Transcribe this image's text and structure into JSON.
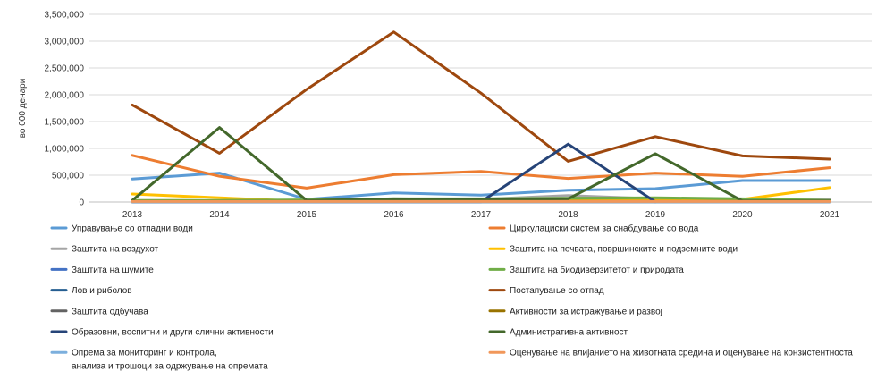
{
  "chart_data": {
    "type": "line",
    "ylabel": "во 000 денари",
    "xlabel": "",
    "title": "",
    "categories": [
      "2013",
      "2014",
      "2015",
      "2016",
      "2017",
      "2018",
      "2019",
      "2020",
      "2021"
    ],
    "ylim": [
      0,
      3500000
    ],
    "yticks": [
      0,
      500000,
      1000000,
      1500000,
      2000000,
      2500000,
      3000000,
      3500000
    ],
    "ytick_labels": [
      "0",
      "500,000",
      "1,000,000",
      "1,500,000",
      "2,000,000",
      "2,500,000",
      "3,000,000",
      "3,500,000"
    ],
    "grid": "horizontal",
    "legend_position": "bottom",
    "series": [
      {
        "name": "Управување со отпадни води",
        "color": "#5b9bd5",
        "values": [
          430000,
          540000,
          50000,
          170000,
          130000,
          220000,
          250000,
          400000,
          400000
        ]
      },
      {
        "name": "Циркулациски систем за снабдување со вода",
        "color": "#ed7d31",
        "values": [
          870000,
          480000,
          260000,
          510000,
          570000,
          440000,
          540000,
          480000,
          640000
        ]
      },
      {
        "name": "Заштита на воздухот",
        "color": "#a5a5a5",
        "values": [
          20000,
          20000,
          10000,
          50000,
          50000,
          120000,
          60000,
          50000,
          50000
        ]
      },
      {
        "name": "Заштита на почвата, површинските и подземните води",
        "color": "#ffc000",
        "values": [
          150000,
          80000,
          10000,
          30000,
          30000,
          40000,
          30000,
          50000,
          270000
        ]
      },
      {
        "name": "Заштита на шумите",
        "color": "#4472c4",
        "values": [
          20000,
          10000,
          10000,
          10000,
          10000,
          10000,
          10000,
          10000,
          10000
        ]
      },
      {
        "name": "Заштита на биодиверзитетот и природата",
        "color": "#70ad47",
        "values": [
          30000,
          30000,
          40000,
          60000,
          60000,
          70000,
          80000,
          60000,
          30000
        ]
      },
      {
        "name": "Лов и риболов",
        "color": "#255e91",
        "values": [
          5000,
          5000,
          5000,
          5000,
          5000,
          5000,
          5000,
          5000,
          5000
        ]
      },
      {
        "name": "Постапување со отпад",
        "color": "#9e480e",
        "values": [
          1810000,
          910000,
          2100000,
          3170000,
          2030000,
          760000,
          1220000,
          860000,
          800000
        ]
      },
      {
        "name": "Заштита одбучава",
        "color": "#636363",
        "values": [
          5000,
          5000,
          5000,
          5000,
          5000,
          5000,
          5000,
          5000,
          5000
        ]
      },
      {
        "name": "Активности за истражување и развој",
        "color": "#997300",
        "values": [
          10000,
          10000,
          10000,
          10000,
          10000,
          10000,
          10000,
          10000,
          10000
        ]
      },
      {
        "name": "Образовни, воспитни и други слични активности",
        "color": "#264478",
        "values": [
          5000,
          5000,
          5000,
          5000,
          5000,
          1080000,
          5000,
          null,
          null
        ]
      },
      {
        "name": "Административна активност",
        "color": "#43682b",
        "values": [
          30000,
          1390000,
          30000,
          60000,
          50000,
          60000,
          900000,
          20000,
          20000
        ]
      },
      {
        "name": "Опрема за мониторинг и контрола, анализа и трошоци за одржување на опремата",
        "name_lines": [
          "Опрема за мониторинг и контрола,",
          "анализа и трошоци за одржување на опремата"
        ],
        "color": "#7cafdd",
        "values": [
          5000,
          5000,
          5000,
          5000,
          5000,
          5000,
          5000,
          5000,
          5000
        ]
      },
      {
        "name": "Оценување на влијанието на животната средина и оценување на конзистентноста",
        "color": "#f1975a",
        "values": [
          10000,
          10000,
          10000,
          10000,
          10000,
          10000,
          10000,
          10000,
          10000
        ]
      }
    ]
  }
}
